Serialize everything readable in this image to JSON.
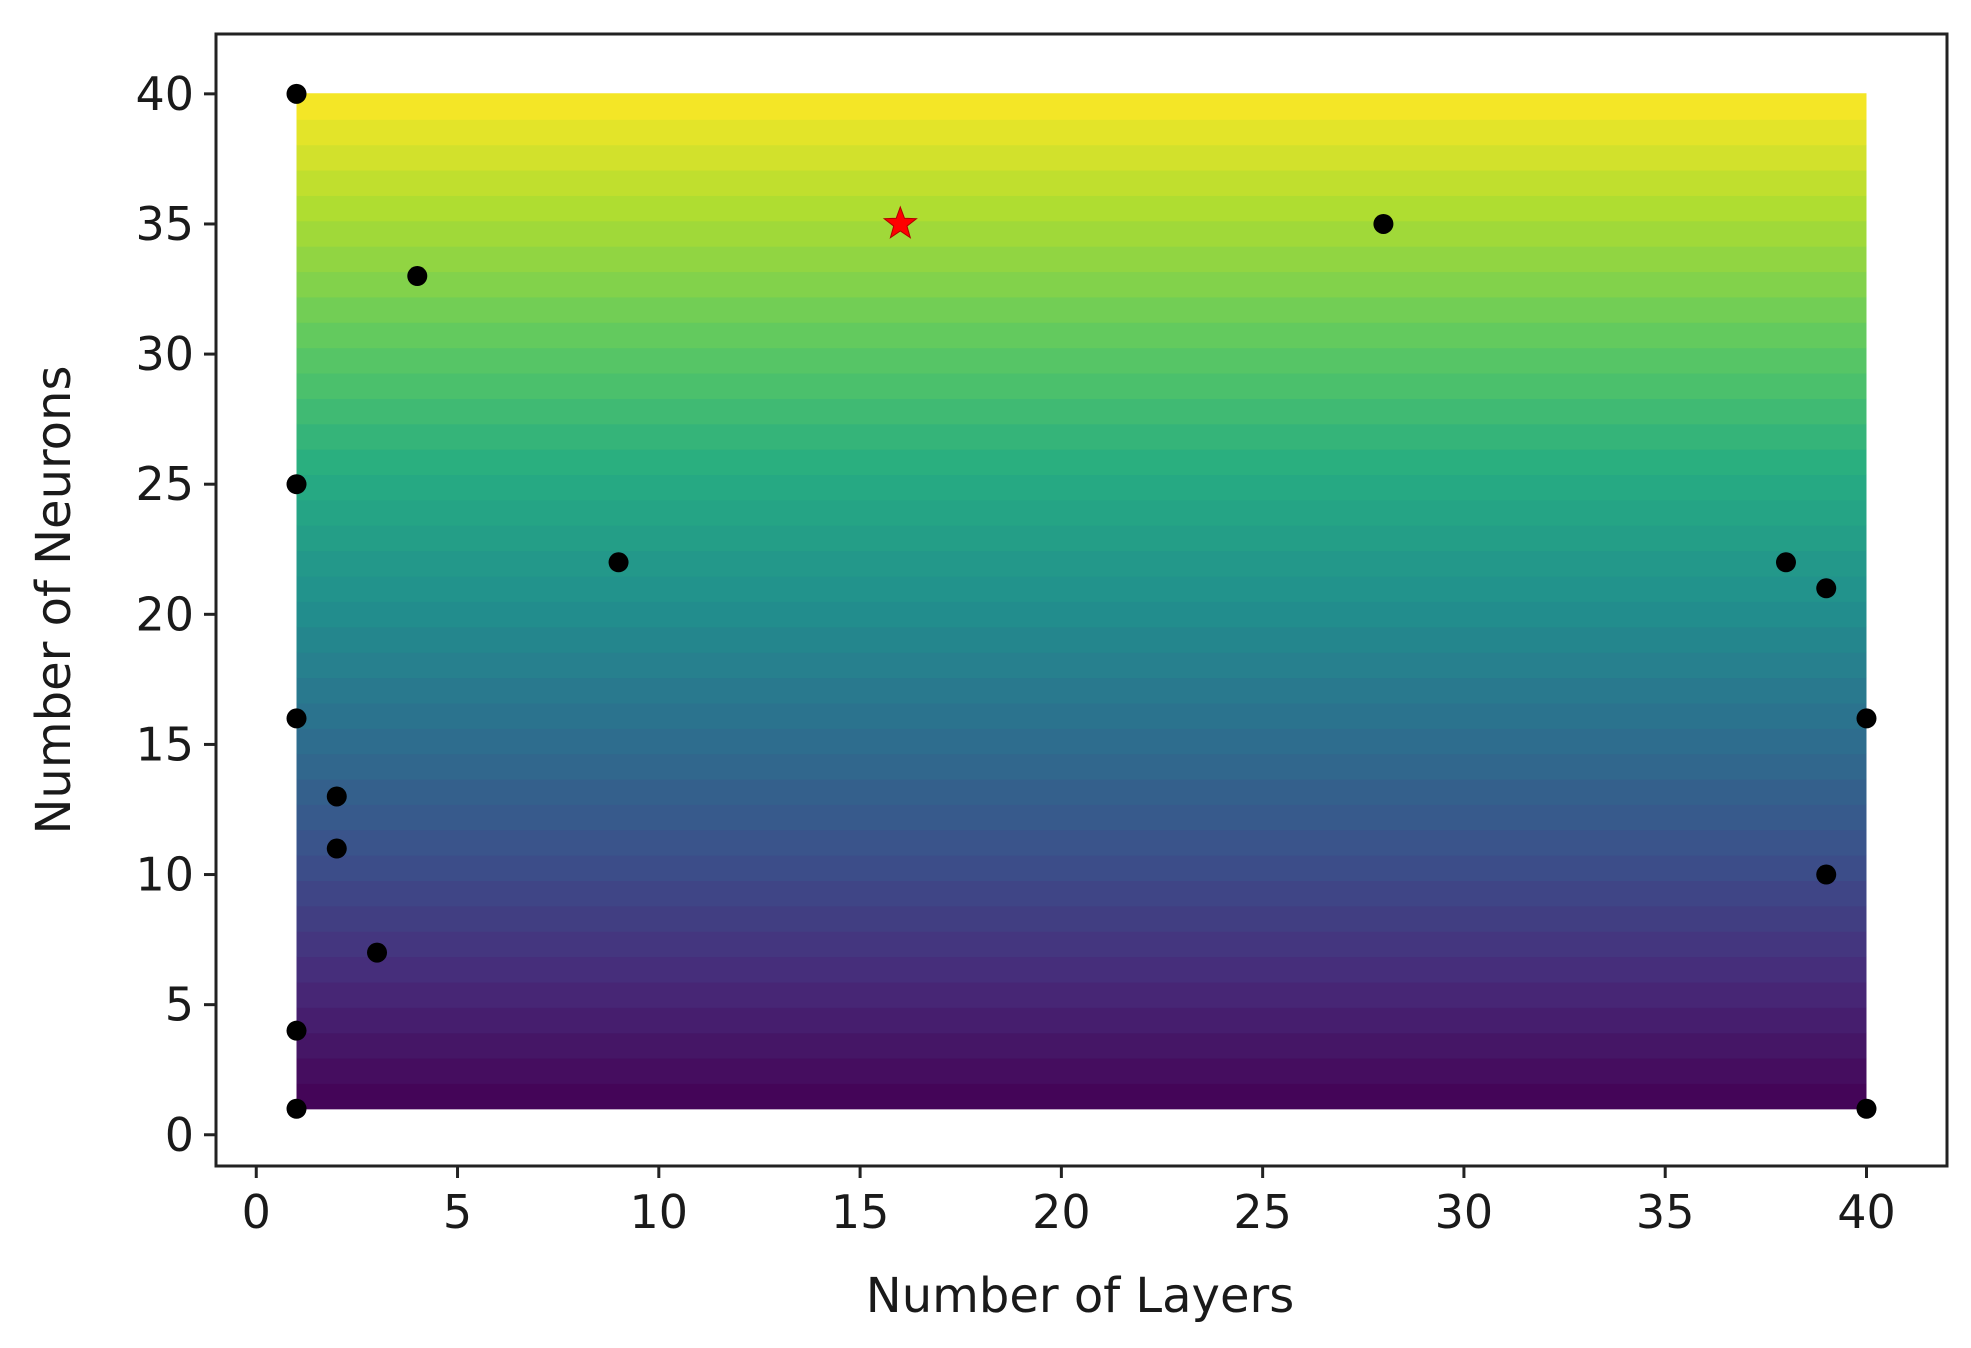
{
  "chart_data": {
    "type": "scatter",
    "title": "",
    "xlabel": "Number of Layers",
    "ylabel": "Number of Neurons",
    "xlim": [
      -1,
      42
    ],
    "ylim": [
      -1.2,
      42.3
    ],
    "xticks": [
      0,
      5,
      10,
      15,
      20,
      25,
      30,
      35,
      40
    ],
    "yticks": [
      0,
      5,
      10,
      15,
      20,
      25,
      30,
      35,
      40
    ],
    "xtick_labels": [
      "0",
      "5",
      "10",
      "15",
      "20",
      "25",
      "30",
      "35",
      "40"
    ],
    "ytick_labels": [
      "0",
      "5",
      "10",
      "15",
      "20",
      "25",
      "30",
      "35",
      "40"
    ],
    "grid": false,
    "background": {
      "type": "gradient",
      "colormap": "viridis",
      "direction": "vertical",
      "x_range": [
        1,
        40
      ],
      "y_range": [
        1,
        40
      ],
      "bands": 40
    },
    "points": [
      {
        "x": 1,
        "y": 40,
        "color": "#000000",
        "marker": "circle"
      },
      {
        "x": 1,
        "y": 25,
        "color": "#000000",
        "marker": "circle"
      },
      {
        "x": 1,
        "y": 16,
        "color": "#000000",
        "marker": "circle"
      },
      {
        "x": 1,
        "y": 4,
        "color": "#000000",
        "marker": "circle"
      },
      {
        "x": 1,
        "y": 1,
        "color": "#000000",
        "marker": "circle"
      },
      {
        "x": 2,
        "y": 13,
        "color": "#000000",
        "marker": "circle"
      },
      {
        "x": 2,
        "y": 11,
        "color": "#000000",
        "marker": "circle"
      },
      {
        "x": 3,
        "y": 7,
        "color": "#000000",
        "marker": "circle"
      },
      {
        "x": 4,
        "y": 33,
        "color": "#000000",
        "marker": "circle"
      },
      {
        "x": 9,
        "y": 22,
        "color": "#000000",
        "marker": "circle"
      },
      {
        "x": 28,
        "y": 35,
        "color": "#000000",
        "marker": "circle"
      },
      {
        "x": 38,
        "y": 22,
        "color": "#000000",
        "marker": "circle"
      },
      {
        "x": 39,
        "y": 21,
        "color": "#000000",
        "marker": "circle"
      },
      {
        "x": 39,
        "y": 10,
        "color": "#000000",
        "marker": "circle"
      },
      {
        "x": 40,
        "y": 16,
        "color": "#000000",
        "marker": "circle"
      },
      {
        "x": 40,
        "y": 1,
        "color": "#000000",
        "marker": "circle"
      }
    ],
    "best_point": {
      "x": 16,
      "y": 35,
      "color": "#ff0000",
      "marker": "star"
    }
  }
}
